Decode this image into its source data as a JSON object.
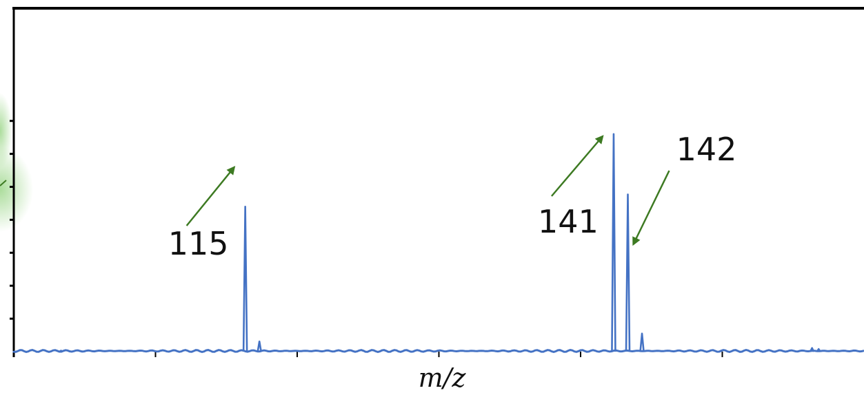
{
  "colors": {
    "series": "#4472C4",
    "annotation": "#3d7a22",
    "axis": "#000000",
    "glow": "#8fd17a"
  },
  "chart_data": {
    "type": "line",
    "title": "",
    "xlabel": "m/z",
    "ylabel": "",
    "xlim": [
      85,
      175
    ],
    "ylim": [
      0,
      100
    ],
    "grid": false,
    "legend": "none",
    "x_minor_ticks": [
      100,
      115,
      130,
      145,
      160
    ],
    "y_minor_ticks": [
      10,
      20,
      30,
      40,
      50,
      60,
      70
    ],
    "series": [
      {
        "name": "",
        "peaks": [
          {
            "x": 90.0,
            "y": 0.3
          },
          {
            "x": 109.5,
            "y": 44.0
          },
          {
            "x": 111.0,
            "y": 3.1
          },
          {
            "x": 148.5,
            "y": 66.0
          },
          {
            "x": 150.0,
            "y": 47.7
          },
          {
            "x": 151.5,
            "y": 5.5
          },
          {
            "x": 169.5,
            "y": 1.1
          },
          {
            "x": 170.2,
            "y": 0.8
          }
        ]
      }
    ],
    "annotations": [
      {
        "text": "115",
        "peak_x": 109.5
      },
      {
        "text": "141",
        "peak_x": 148.5
      },
      {
        "text": "142",
        "peak_x": 150.0
      }
    ]
  }
}
